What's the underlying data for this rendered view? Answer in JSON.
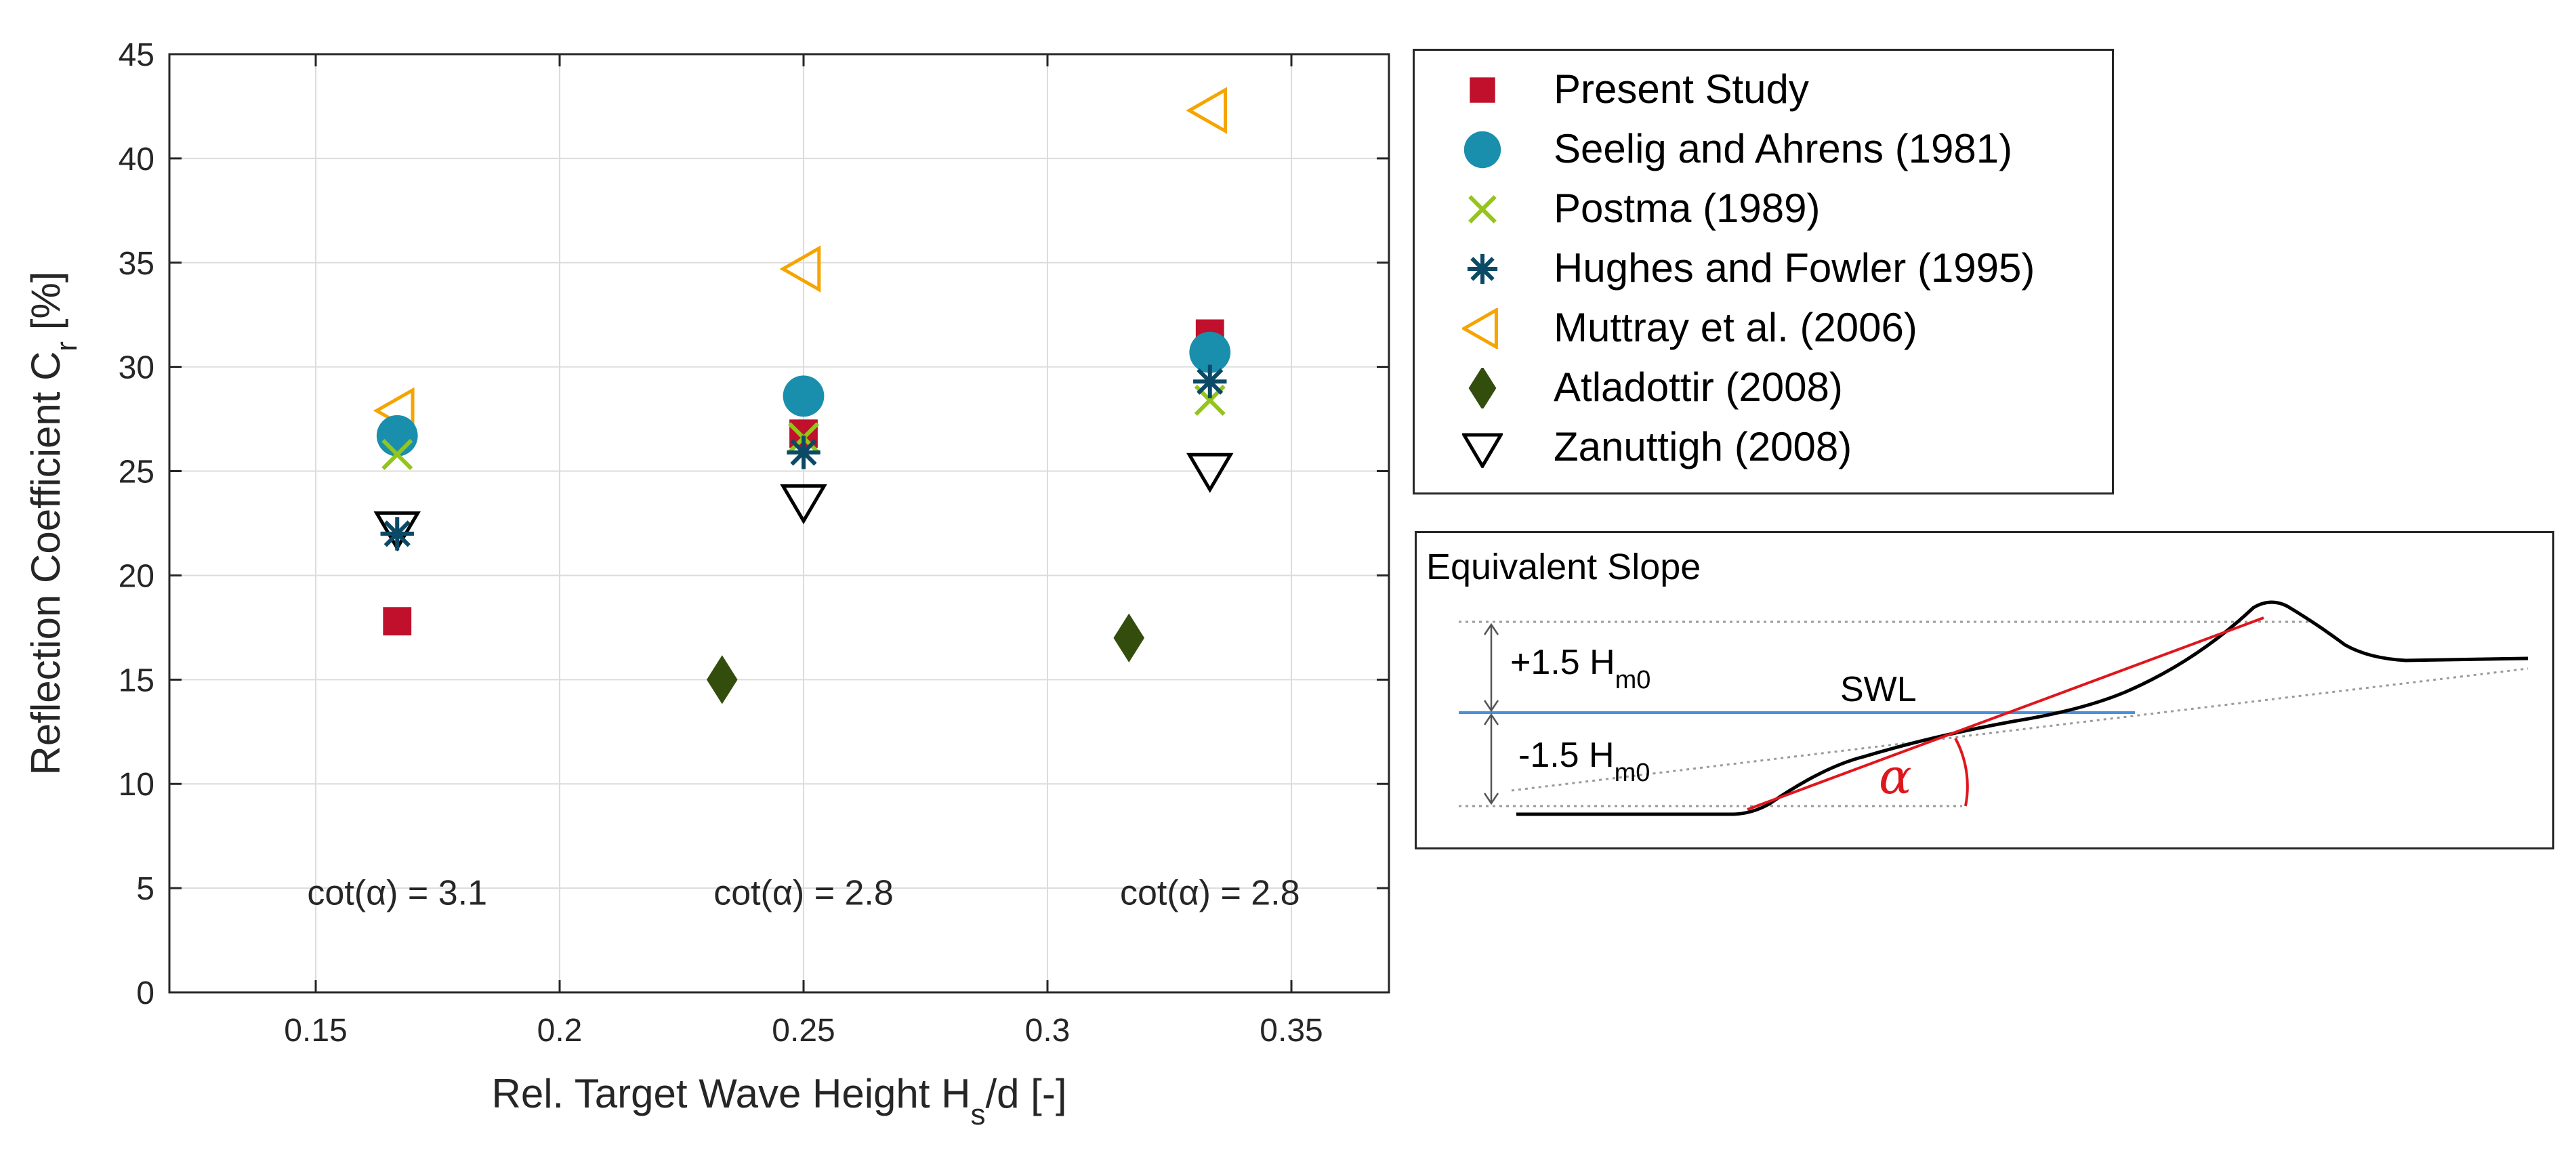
{
  "chart_data": {
    "type": "scatter",
    "title": "",
    "xlabel": "Rel. Target Wave Height H",
    "xlabel_sub": "s",
    "xlabel_suffix": "/d [-]",
    "ylabel": "Reflection Coefficient C",
    "ylabel_sub": "r",
    "ylabel_suffix": " [%]",
    "xlim": [
      0.12,
      0.37
    ],
    "ylim": [
      0,
      45
    ],
    "xticks": [
      0.15,
      0.2,
      0.25,
      0.3,
      0.35
    ],
    "xtick_labels": [
      "0.15",
      "0.2",
      "0.25",
      "0.3",
      "0.35"
    ],
    "yticks": [
      0,
      5,
      10,
      15,
      20,
      25,
      30,
      35,
      40,
      45
    ],
    "ytick_labels": [
      "0",
      "5",
      "10",
      "15",
      "20",
      "25",
      "30",
      "35",
      "40",
      "45"
    ],
    "grid": true,
    "annotations": [
      {
        "x": 0.1667,
        "y": 4.8,
        "text": "cot(α) = 3.1"
      },
      {
        "x": 0.25,
        "y": 4.8,
        "text": "cot(α) = 2.8"
      },
      {
        "x": 0.3333,
        "y": 4.8,
        "text": "cot(α) = 2.8"
      }
    ],
    "series": [
      {
        "name": "Present Study",
        "marker": "square",
        "color": "#c0102b",
        "points": [
          [
            0.1667,
            17.8
          ],
          [
            0.25,
            26.8
          ],
          [
            0.3333,
            31.6
          ]
        ]
      },
      {
        "name": "Seelig and Ahrens (1981)",
        "marker": "circle",
        "color": "#1a8fad",
        "points": [
          [
            0.1667,
            26.7
          ],
          [
            0.25,
            28.6
          ],
          [
            0.3333,
            30.7
          ]
        ]
      },
      {
        "name": "Postma (1989)",
        "marker": "x",
        "color": "#94c51a",
        "points": [
          [
            0.1667,
            25.8
          ],
          [
            0.25,
            26.6
          ],
          [
            0.3333,
            28.4
          ]
        ]
      },
      {
        "name": "Hughes and Fowler (1995)",
        "marker": "asterisk",
        "color": "#0b4a66",
        "points": [
          [
            0.1667,
            22.0
          ],
          [
            0.25,
            25.9
          ],
          [
            0.3333,
            29.3
          ]
        ]
      },
      {
        "name": "Muttray et al. (2006)",
        "marker": "triangle-left",
        "color": "#f5a400",
        "points": [
          [
            0.1667,
            27.9
          ],
          [
            0.25,
            34.7
          ],
          [
            0.3333,
            42.3
          ]
        ]
      },
      {
        "name": "Atladottir (2008)",
        "marker": "diamond",
        "color": "#334d0d",
        "points": [
          [
            0.2333,
            15.0
          ],
          [
            0.3167,
            17.0
          ]
        ]
      },
      {
        "name": "Zanuttigh (2008)",
        "marker": "triangle-down",
        "color": "#000000",
        "points": [
          [
            0.1667,
            22.3
          ],
          [
            0.25,
            23.6
          ],
          [
            0.3333,
            25.1
          ]
        ]
      }
    ]
  },
  "inset": {
    "title": "Equivalent Slope",
    "upper_label": "+1.5 H",
    "upper_sub": "m0",
    "lower_label": "-1.5 H",
    "lower_sub": "m0",
    "swl_label": "SWL",
    "angle_label": "α",
    "swl_color": "#4a90d9",
    "slope_color": "#e0161d"
  }
}
